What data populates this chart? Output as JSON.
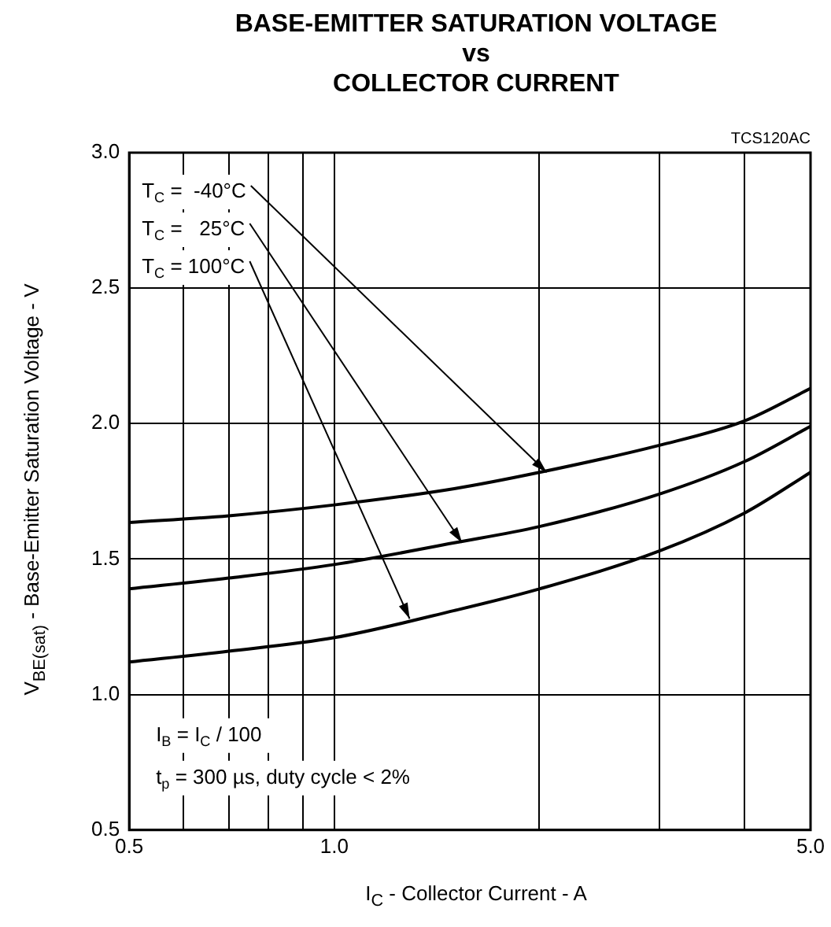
{
  "chart_data": {
    "type": "line",
    "title": "BASE-EMITTER SATURATION VOLTAGE\nvs\nCOLLECTOR CURRENT",
    "xlabel": "I$_{C}$ - Collector Current - A",
    "ylabel": "V$_{BE(sat)}$ - Base-Emitter Saturation Voltage - V",
    "x": [
      0.5,
      0.7,
      1.0,
      1.5,
      2.0,
      3.0,
      4.0,
      5.0
    ],
    "series": [
      {
        "color": "#000000",
        "values": [
          1.635,
          1.66,
          1.7,
          1.76,
          1.82,
          1.92,
          2.01,
          2.13
        ]
      },
      {
        "color": "#000000",
        "values": [
          1.39,
          1.43,
          1.48,
          1.56,
          1.62,
          1.74,
          1.86,
          1.99
        ]
      },
      {
        "color": "#000000",
        "values": [
          1.12,
          1.16,
          1.21,
          1.31,
          1.39,
          1.53,
          1.67,
          1.82
        ]
      }
    ],
    "log": "x",
    "xlim": [
      0.5,
      5.0
    ],
    "xticks": [
      {
        "value": 0.5,
        "label": "0.5"
      },
      {
        "value": 0.6,
        "label": null
      },
      {
        "value": 0.7,
        "label": null
      },
      {
        "value": 0.8,
        "label": null
      },
      {
        "value": 0.9,
        "label": null
      },
      {
        "value": 1.0,
        "label": "1.0"
      },
      {
        "value": 2.0,
        "label": null
      },
      {
        "value": 3.0,
        "label": null
      },
      {
        "value": 4.0,
        "label": null
      },
      {
        "value": 5.0,
        "label": "5.0"
      }
    ],
    "ylim": [
      0.5,
      3.0
    ],
    "yticks": [
      {
        "value": 0.5,
        "label": "0.5"
      },
      {
        "value": 1.0,
        "label": "1.0"
      },
      {
        "value": 1.5,
        "label": "1.5"
      },
      {
        "value": 2.0,
        "label": "2.0"
      },
      {
        "value": 2.5,
        "label": "2.5"
      },
      {
        "value": 3.0,
        "label": "3.0"
      }
    ],
    "grid": true,
    "legend": false,
    "marker": "none",
    "line_style": "solid",
    "annotations": [
      "TCS120AC",
      {
        "text": "T$_{C}$ =  -40°C",
        "x": 2.05,
        "y": 1.82
      },
      {
        "text": "T$_{C}$ =   25°C",
        "x": 1.54,
        "y": 1.56
      },
      {
        "text": "T$_{C}$ = 100°C",
        "x": 1.29,
        "y": 1.28
      },
      "I$_{B}$ = I$_{C}$ / 100",
      "t$_{p}$ = 300 µs, duty cycle < 2%"
    ]
  }
}
